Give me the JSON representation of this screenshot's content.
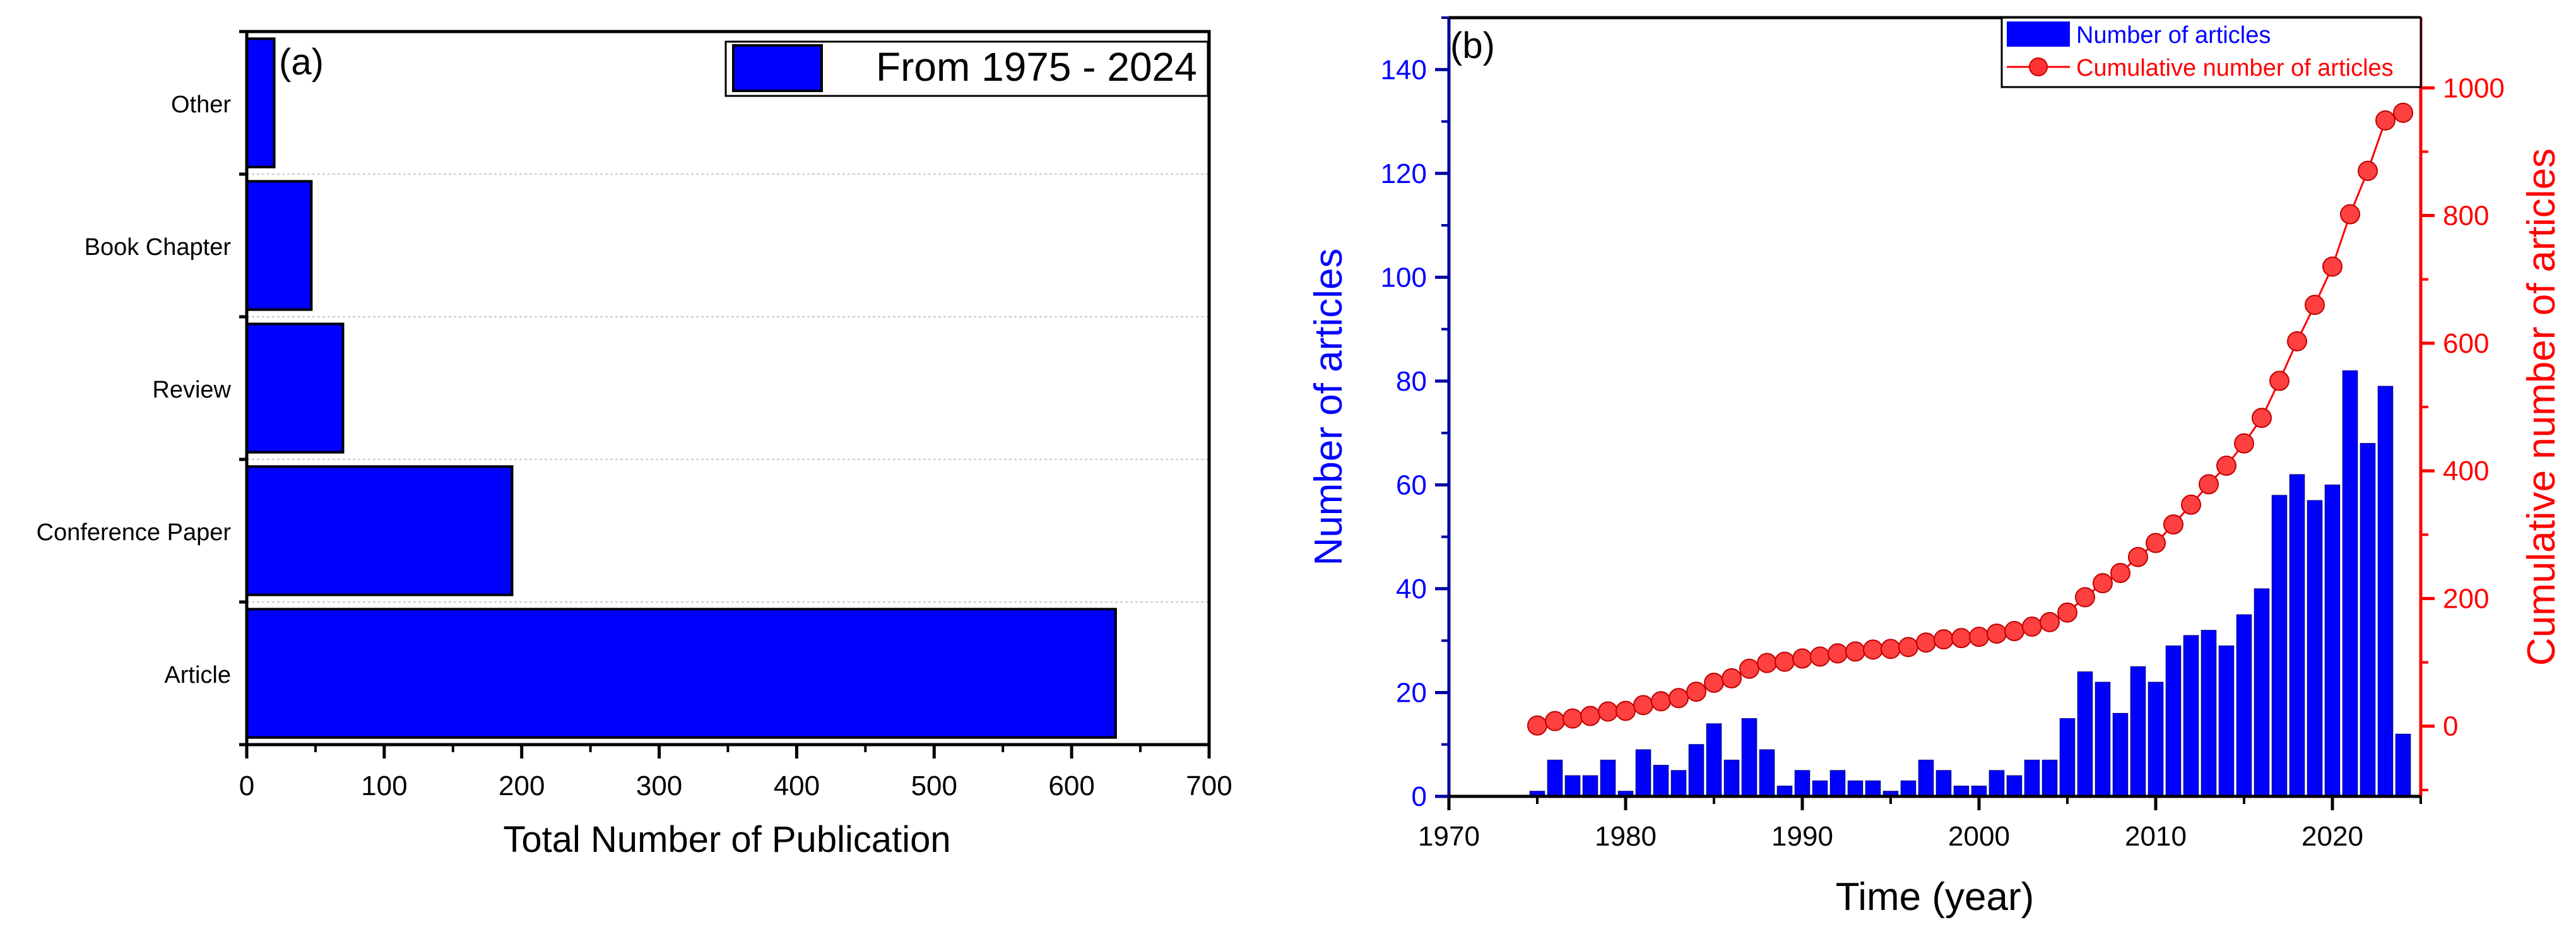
{
  "chart_data": [
    {
      "id": "a",
      "type": "bar",
      "orientation": "horizontal",
      "panel_label": "(a)",
      "categories": [
        "Other",
        "Book Chapter",
        "Review",
        "Conference Paper",
        "Article"
      ],
      "values": [
        20,
        47,
        70,
        193,
        632
      ],
      "xlabel": "Total Number of Publication",
      "xlim": [
        0,
        700
      ],
      "xticks": [
        "0",
        "100",
        "200",
        "300",
        "400",
        "500",
        "600",
        "700"
      ],
      "legend": "From 1975 - 2024",
      "legend_position": "top-right",
      "bar_color": "#0000ff",
      "grid": "horizontal dashed separators"
    },
    {
      "id": "b",
      "type": "bar+line",
      "panel_label": "(b)",
      "xlabel": "Time (year)",
      "xlim": [
        1970,
        2025
      ],
      "xticks": [
        "1970",
        "1980",
        "1990",
        "2000",
        "2010",
        "2020"
      ],
      "ylabel_left": "Number of articles",
      "ylim_left": [
        0,
        150
      ],
      "yticks_left": [
        "0",
        "20",
        "40",
        "60",
        "80",
        "100",
        "120",
        "140"
      ],
      "ylabel_right": "Cumulative number of articles",
      "ylim_right": [
        -110,
        1110
      ],
      "yticks_right": [
        "0",
        "200",
        "400",
        "600",
        "800",
        "1000"
      ],
      "legend_bar": "Number of articles",
      "legend_line": "Cumulative number of articles",
      "legend_position": "top-right",
      "bar_color": "#0000ff",
      "line_color": "#ff0000",
      "years": [
        1975,
        1976,
        1977,
        1978,
        1979,
        1980,
        1981,
        1982,
        1983,
        1984,
        1985,
        1986,
        1987,
        1988,
        1989,
        1990,
        1991,
        1992,
        1993,
        1994,
        1995,
        1996,
        1997,
        1998,
        1999,
        2000,
        2001,
        2002,
        2003,
        2004,
        2005,
        2006,
        2007,
        2008,
        2009,
        2010,
        2011,
        2012,
        2013,
        2014,
        2015,
        2016,
        2017,
        2018,
        2019,
        2020,
        2021,
        2022,
        2023,
        2024
      ],
      "articles": [
        1,
        7,
        4,
        4,
        7,
        1,
        9,
        6,
        5,
        10,
        14,
        7,
        15,
        9,
        2,
        5,
        3,
        5,
        3,
        3,
        1,
        3,
        7,
        5,
        2,
        2,
        5,
        4,
        7,
        7,
        15,
        24,
        22,
        16,
        25,
        22,
        29,
        31,
        32,
        29,
        35,
        40,
        58,
        62,
        57,
        60,
        82,
        68,
        79,
        12
      ],
      "cumulative": [
        1,
        8,
        12,
        16,
        23,
        24,
        33,
        39,
        44,
        54,
        68,
        75,
        90,
        99,
        101,
        106,
        109,
        114,
        117,
        120,
        121,
        124,
        131,
        136,
        138,
        140,
        145,
        149,
        156,
        163,
        178,
        202,
        224,
        240,
        265,
        287,
        316,
        347,
        379,
        408,
        443,
        483,
        541,
        603,
        660,
        720,
        802,
        870,
        949,
        961
      ]
    }
  ]
}
